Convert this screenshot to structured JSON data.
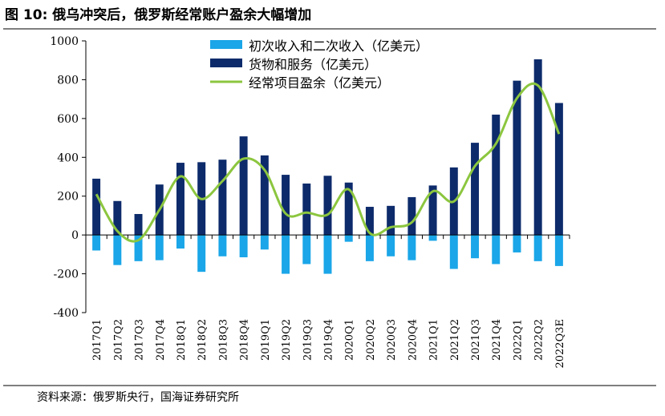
{
  "title": {
    "prefix": "图 10:",
    "text": "俄乌冲突后，俄罗斯经常账户盈余大幅增加"
  },
  "source": {
    "text": "资料来源：俄罗斯央行，国海证券研究所"
  },
  "chart_data": {
    "type": "bar",
    "title": "俄乌冲突后，俄罗斯经常账户盈余大幅增加",
    "xlabel": "",
    "ylabel": "",
    "ylim": [
      -400,
      1000
    ],
    "yticks": [
      -400,
      -200,
      0,
      200,
      400,
      600,
      800,
      1000
    ],
    "grid": false,
    "legend_position": "top-center",
    "categories": [
      "2017Q1",
      "2017Q2",
      "2017Q3",
      "2017Q4",
      "2018Q1",
      "2018Q2",
      "2018Q3",
      "2018Q4",
      "2019Q1",
      "2019Q2",
      "2019Q3",
      "2019Q4",
      "2020Q1",
      "2020Q2",
      "2020Q3",
      "2020Q4",
      "2021Q1",
      "2021Q2",
      "2021Q3",
      "2021Q4",
      "2022Q1",
      "2022Q2",
      "2022Q3E"
    ],
    "series": [
      {
        "name": "初次收入和二次收入（亿美元）",
        "kind": "bar",
        "color": "#1aa6e8",
        "values": [
          -80,
          -155,
          -135,
          -130,
          -70,
          -190,
          -110,
          -115,
          -75,
          -200,
          -150,
          -200,
          -35,
          -135,
          -110,
          -130,
          -30,
          -175,
          -120,
          -150,
          -90,
          -135,
          -160
        ]
      },
      {
        "name": "货物和服务（亿美元）",
        "kind": "bar",
        "color": "#0d2b6b",
        "values": [
          290,
          175,
          108,
          260,
          372,
          375,
          388,
          508,
          410,
          310,
          265,
          305,
          270,
          145,
          150,
          195,
          255,
          348,
          475,
          620,
          795,
          905,
          680
        ]
      },
      {
        "name": "经常项目盈余（亿美元）",
        "kind": "line",
        "color": "#8cc63f",
        "values": [
          210,
          20,
          -27,
          130,
          302,
          185,
          278,
          393,
          335,
          110,
          115,
          105,
          235,
          10,
          40,
          65,
          225,
          173,
          355,
          470,
          705,
          770,
          520
        ]
      }
    ]
  }
}
